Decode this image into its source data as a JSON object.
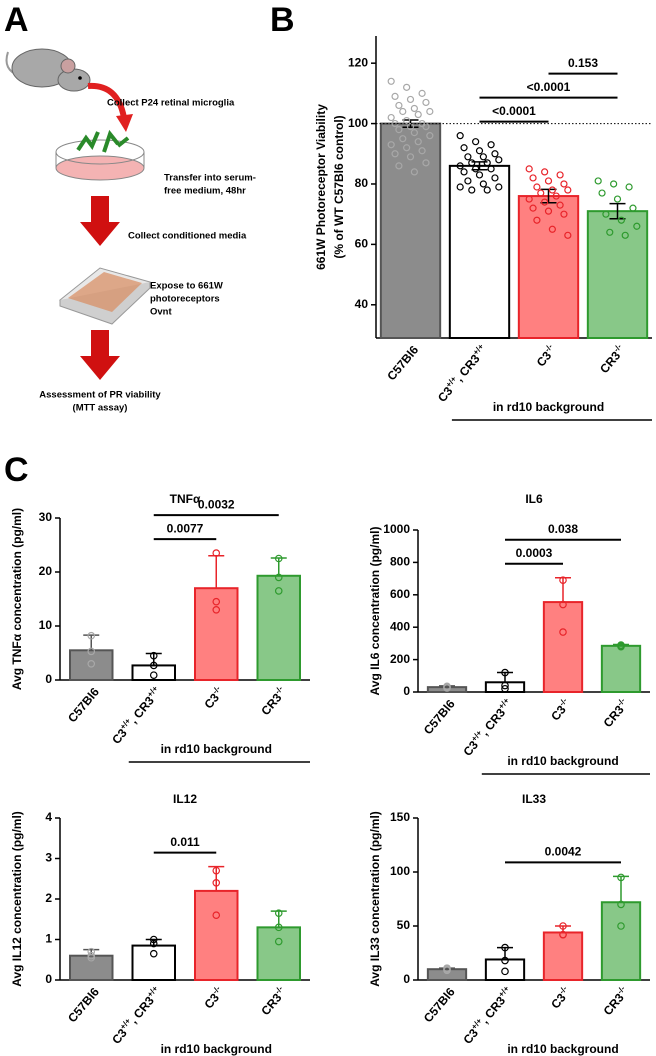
{
  "schematic": {
    "label": "A",
    "steps": [
      {
        "lines": [
          "Collect P24 retinal microglia"
        ]
      },
      {
        "lines": [
          "Transfer into serum-",
          "free medium, 48hr"
        ]
      },
      {
        "lines": [
          "Collect conditioned media"
        ]
      },
      {
        "lines": [
          "Expose to  661W",
          "photoreceptors",
          "Ovnt"
        ]
      },
      {
        "lines": [
          "Assessment of PR viability",
          "(MTT assay)"
        ]
      }
    ]
  },
  "panel_labels": [
    "B",
    "C"
  ],
  "chart_data": [
    {
      "type": "bar",
      "ylabel": [
        "661W Photoreceptor Viability",
        "(% of WT C57Bl6 control)"
      ],
      "categories": [
        "C57Bl6",
        "C3+/+, CR3+/+",
        "C3-/-",
        "CR3-/-"
      ],
      "group_label": "in rd10 background",
      "values": [
        100,
        86,
        76,
        71
      ],
      "errors": [
        1.2,
        1.3,
        2.2,
        2.5
      ],
      "error_direction": "both",
      "points": [
        [
          114,
          112,
          110,
          109,
          108,
          107,
          106,
          105,
          104,
          104,
          103,
          102,
          101,
          100,
          100,
          99,
          99,
          98,
          97,
          96,
          95,
          94,
          93,
          92,
          91,
          90,
          89,
          87,
          86,
          84
        ],
        [
          96,
          94,
          93,
          92,
          91,
          90,
          89,
          89,
          88,
          87,
          87,
          86,
          85,
          85,
          84,
          83,
          82,
          81,
          80,
          79,
          78,
          78,
          79
        ],
        [
          85,
          84,
          83,
          82,
          81,
          80,
          79,
          78,
          78,
          77,
          76,
          75,
          74,
          73,
          72,
          71,
          70,
          68,
          65,
          63
        ],
        [
          81,
          80,
          79,
          77,
          75,
          72,
          70,
          68,
          66,
          64,
          63
        ]
      ],
      "colors": [
        "#8c8c8c",
        "#ffffff",
        "#ff8080",
        "#88c888"
      ],
      "edge_colors": [
        "#555555",
        "#000000",
        "#e8242a",
        "#2e9a2e"
      ],
      "point_colors": [
        "#a8a8a8",
        "#000000",
        "#e8242a",
        "#2e9a2e"
      ],
      "reference_line": 100,
      "ylim": [
        29,
        129
      ],
      "yticks": [
        40,
        60,
        80,
        100,
        120
      ],
      "brackets": [
        {
          "between": [
            1,
            2
          ],
          "label": "<0.0001"
        },
        {
          "between": [
            1,
            3
          ],
          "label": "<0.0001"
        },
        {
          "between": [
            2,
            3
          ],
          "label": "0.153"
        }
      ]
    },
    {
      "type": "bar",
      "title": "TNFα",
      "ylabel": [
        "Avg TNFα concentration (pg/ml)"
      ],
      "categories": [
        "C57Bl6",
        "C3+/+, CR3+/+",
        "C3-/-",
        "CR3-/-"
      ],
      "group_label": "in rd10 background",
      "values": [
        5.5,
        2.7,
        17,
        19.3
      ],
      "errors": [
        2.8,
        2.2,
        6,
        3.3
      ],
      "error_direction": "up",
      "points": [
        [
          8.2,
          5.3,
          3.0
        ],
        [
          4.5,
          2.7,
          0.9
        ],
        [
          23.5,
          14.5,
          13
        ],
        [
          22.5,
          19,
          16.5
        ]
      ],
      "colors": [
        "#8c8c8c",
        "#ffffff",
        "#ff8080",
        "#88c888"
      ],
      "edge_colors": [
        "#555555",
        "#000000",
        "#e8242a",
        "#2e9a2e"
      ],
      "point_colors": [
        "#a8a8a8",
        "#000000",
        "#e8242a",
        "#2e9a2e"
      ],
      "ylim": [
        0,
        30
      ],
      "yticks": [
        0,
        10,
        20,
        30
      ],
      "brackets": [
        {
          "between": [
            1,
            2
          ],
          "label": "0.0077"
        },
        {
          "between": [
            1,
            3
          ],
          "label": "0.0032"
        }
      ]
    },
    {
      "type": "bar",
      "title": "IL6",
      "ylabel": [
        "Avg IL6 concentration (pg/ml)"
      ],
      "categories": [
        "C57Bl6",
        "C3+/+, CR3+/+",
        "C3-/-",
        "CR3-/-"
      ],
      "group_label": "in rd10 background",
      "values": [
        30,
        60,
        555,
        285
      ],
      "errors": [
        8,
        60,
        150,
        8
      ],
      "error_direction": "up",
      "points": [
        [
          35,
          25,
          30
        ],
        [
          120,
          40,
          20
        ],
        [
          690,
          540,
          370
        ],
        [
          290,
          280,
          285
        ]
      ],
      "colors": [
        "#8c8c8c",
        "#ffffff",
        "#ff8080",
        "#88c888"
      ],
      "edge_colors": [
        "#555555",
        "#000000",
        "#e8242a",
        "#2e9a2e"
      ],
      "point_colors": [
        "#a8a8a8",
        "#000000",
        "#e8242a",
        "#2e9a2e"
      ],
      "ylim": [
        0,
        1000
      ],
      "yticks": [
        0,
        200,
        400,
        600,
        800,
        1000
      ],
      "brackets": [
        {
          "between": [
            1,
            2
          ],
          "label": "0.0003"
        },
        {
          "between": [
            1,
            3
          ],
          "label": "0.038"
        }
      ]
    },
    {
      "type": "bar",
      "title": "IL12",
      "ylabel": [
        "Avg IL12 concentration (pg/ml)"
      ],
      "categories": [
        "C57Bl6",
        "C3+/+, CR3+/+",
        "C3-/-",
        "CR3-/-"
      ],
      "group_label": "in rd10 background",
      "values": [
        0.6,
        0.85,
        2.2,
        1.3
      ],
      "errors": [
        0.15,
        0.15,
        0.6,
        0.4
      ],
      "error_direction": "up",
      "points": [
        [
          0.7,
          0.6,
          0.55
        ],
        [
          1.0,
          0.9,
          0.65
        ],
        [
          2.7,
          2.4,
          1.6
        ],
        [
          1.65,
          1.3,
          0.95
        ]
      ],
      "colors": [
        "#8c8c8c",
        "#ffffff",
        "#ff8080",
        "#88c888"
      ],
      "edge_colors": [
        "#555555",
        "#000000",
        "#e8242a",
        "#2e9a2e"
      ],
      "point_colors": [
        "#a8a8a8",
        "#000000",
        "#e8242a",
        "#2e9a2e"
      ],
      "ylim": [
        0,
        4
      ],
      "yticks": [
        0,
        1,
        2,
        3,
        4
      ],
      "brackets": [
        {
          "between": [
            1,
            2
          ],
          "label": "0.011"
        }
      ]
    },
    {
      "type": "bar",
      "title": "IL33",
      "ylabel": [
        "Avg IL33 concentration (pg/ml)"
      ],
      "categories": [
        "C57Bl6",
        "C3+/+, CR3+/+",
        "C3-/-",
        "CR3-/-"
      ],
      "group_label": "in rd10 background",
      "values": [
        10,
        19,
        44,
        72
      ],
      "errors": [
        1,
        11,
        6,
        24
      ],
      "error_direction": "up",
      "points": [
        [
          11,
          10,
          9
        ],
        [
          30,
          18,
          8
        ],
        [
          50,
          42,
          42
        ],
        [
          95,
          70,
          50
        ]
      ],
      "colors": [
        "#8c8c8c",
        "#ffffff",
        "#ff8080",
        "#88c888"
      ],
      "edge_colors": [
        "#555555",
        "#000000",
        "#e8242a",
        "#2e9a2e"
      ],
      "point_colors": [
        "#a8a8a8",
        "#000000",
        "#e8242a",
        "#2e9a2e"
      ],
      "ylim": [
        0,
        150
      ],
      "yticks": [
        0,
        50,
        100,
        150
      ],
      "brackets": [
        {
          "between": [
            1,
            3
          ],
          "label": "0.0042"
        }
      ]
    }
  ]
}
